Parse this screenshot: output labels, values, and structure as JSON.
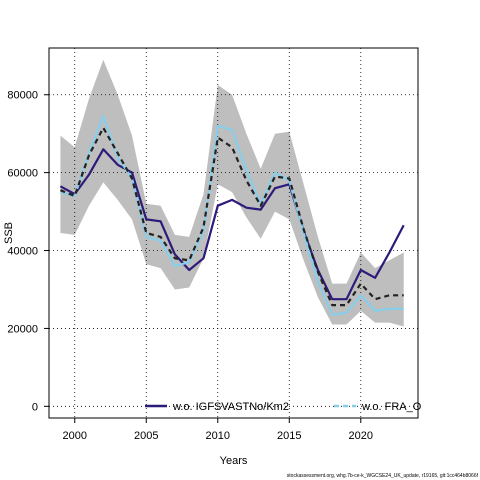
{
  "chart_data": {
    "type": "line",
    "xlabel": "Years",
    "ylabel": "SSB",
    "xlim": [
      1998.2,
      2024.0
    ],
    "ylim": [
      -3000,
      92000
    ],
    "xticks": [
      2000,
      2005,
      2010,
      2015,
      2020
    ],
    "xtick_labels": [
      "2000",
      "2005",
      "2010",
      "2015",
      "2020"
    ],
    "yticks": [
      0,
      20000,
      40000,
      60000,
      80000
    ],
    "ytick_labels": [
      "0",
      "20000",
      "40000",
      "60000",
      "80000"
    ],
    "grid": true,
    "x": [
      1999,
      2000,
      2001,
      2002,
      2003,
      2004,
      2005,
      2006,
      2007,
      2008,
      2009,
      2010,
      2011,
      2012,
      2013,
      2014,
      2015,
      2016,
      2017,
      2018,
      2019,
      2020,
      2021,
      2022,
      2023
    ],
    "confidence_band": {
      "color": "#bebebe",
      "upper": [
        69500,
        66500,
        79000,
        89000,
        80000,
        69500,
        52000,
        51500,
        44000,
        43500,
        54500,
        82500,
        80000,
        70000,
        61000,
        70000,
        70500,
        57000,
        43500,
        31500,
        31500,
        39500,
        35500,
        37500,
        39500
      ],
      "lower": [
        44500,
        44000,
        51500,
        57500,
        53000,
        48000,
        36500,
        35500,
        30000,
        30500,
        38000,
        57000,
        55000,
        48500,
        43000,
        50000,
        48000,
        37500,
        28000,
        21000,
        21000,
        24500,
        21500,
        21500,
        20500
      ]
    },
    "series": [
      {
        "name": "w.o. IGFSVASTNo/Km2",
        "color": "#2e1a7a",
        "style": "solid",
        "values": [
          56500,
          54500,
          59500,
          66000,
          62000,
          60000,
          48000,
          47500,
          39000,
          35000,
          38000,
          51500,
          53000,
          51000,
          50500,
          56000,
          57000,
          45000,
          35000,
          27500,
          27500,
          35000,
          33000,
          39500,
          46500
        ]
      },
      {
        "name": "w.o. FRA_O",
        "color": "#87ceeb",
        "style": "dashed",
        "values": [
          55000,
          54000,
          65000,
          74500,
          64000,
          58500,
          43500,
          42500,
          36000,
          37000,
          45000,
          72000,
          71000,
          60500,
          52000,
          60000,
          58000,
          44500,
          32000,
          23500,
          24000,
          28500,
          24500,
          25000,
          25000
        ]
      }
    ],
    "reference_line": {
      "color": "#222222",
      "style": "dashed",
      "values": [
        55500,
        54000,
        64500,
        71500,
        65000,
        58500,
        44500,
        43500,
        38000,
        37500,
        46000,
        69000,
        66500,
        58000,
        51500,
        59000,
        58500,
        45500,
        34500,
        26000,
        26000,
        31500,
        27500,
        28500,
        28500
      ]
    },
    "legend": {
      "position": "bottom",
      "entries": [
        {
          "label": "w.o. IGFSVASTNo/Km2",
          "color": "#2e1a7a",
          "style": "solid"
        },
        {
          "label": "w.o. FRA_O",
          "color": "#87ceeb",
          "style": "dashed"
        }
      ]
    },
    "footnote": "stockassessment.org, whg.7b-ce-k_WGCSE24_UK_update, r19165, git:1cc464b8066f"
  }
}
